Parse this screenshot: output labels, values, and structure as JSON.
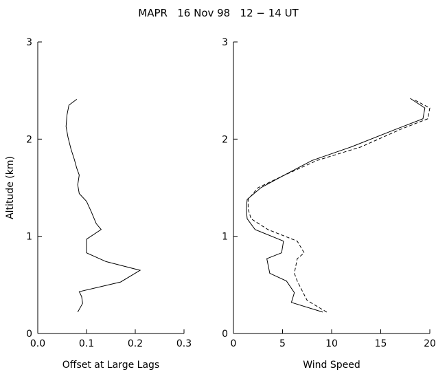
{
  "title": "MAPR   16 Nov 98   12 − 14 UT",
  "chart_data": [
    {
      "type": "line",
      "xlabel": "Offset at Large Lags",
      "ylabel": "Altitude (km)",
      "xlim": [
        0.0,
        0.3
      ],
      "ylim": [
        0,
        3
      ],
      "xticks": [
        "0.0",
        "0.1",
        "0.2",
        "0.3"
      ],
      "yticks": [
        "0",
        "1",
        "2",
        "3"
      ],
      "series": [
        {
          "style": "solid",
          "x": [
            0.082,
            0.092,
            0.09,
            0.085,
            0.17,
            0.21,
            0.14,
            0.1,
            0.1,
            0.13,
            0.12,
            0.11,
            0.1,
            0.085,
            0.082,
            0.085,
            0.08,
            0.075,
            0.068,
            0.062,
            0.058,
            0.06,
            0.064,
            0.08
          ],
          "y": [
            0.22,
            0.31,
            0.38,
            0.43,
            0.53,
            0.65,
            0.74,
            0.83,
            0.97,
            1.07,
            1.13,
            1.25,
            1.36,
            1.44,
            1.53,
            1.63,
            1.7,
            1.79,
            1.9,
            2.02,
            2.13,
            2.25,
            2.35,
            2.41
          ]
        }
      ]
    },
    {
      "type": "line",
      "xlabel": "Wind Speed",
      "ylabel": "",
      "xlim": [
        0,
        20
      ],
      "ylim": [
        0,
        3
      ],
      "xticks": [
        "0",
        "5",
        "10",
        "15",
        "20"
      ],
      "yticks": [
        "0",
        "1",
        "2",
        "3"
      ],
      "series": [
        {
          "style": "solid",
          "x": [
            9.1,
            5.9,
            6.2,
            5.4,
            3.7,
            3.4,
            4.9,
            5.1,
            2.2,
            1.4,
            1.3,
            1.4,
            2.8,
            5.0,
            8.0,
            12.0,
            16.5,
            19.3,
            19.5,
            18.0
          ],
          "y": [
            0.22,
            0.32,
            0.42,
            0.54,
            0.62,
            0.77,
            0.83,
            0.95,
            1.07,
            1.18,
            1.28,
            1.38,
            1.5,
            1.62,
            1.78,
            1.92,
            2.1,
            2.21,
            2.32,
            2.42
          ]
        },
        {
          "style": "dashed",
          "x": [
            9.5,
            7.5,
            6.8,
            6.5,
            6.2,
            6.5,
            7.2,
            6.5,
            3.5,
            1.8,
            1.5,
            1.5,
            2.5,
            5.0,
            8.5,
            13.0,
            17.0,
            19.8,
            20.0,
            18.5
          ],
          "y": [
            0.22,
            0.34,
            0.48,
            0.54,
            0.62,
            0.77,
            0.83,
            0.95,
            1.07,
            1.18,
            1.28,
            1.38,
            1.5,
            1.62,
            1.78,
            1.92,
            2.1,
            2.21,
            2.32,
            2.4
          ]
        }
      ]
    }
  ]
}
